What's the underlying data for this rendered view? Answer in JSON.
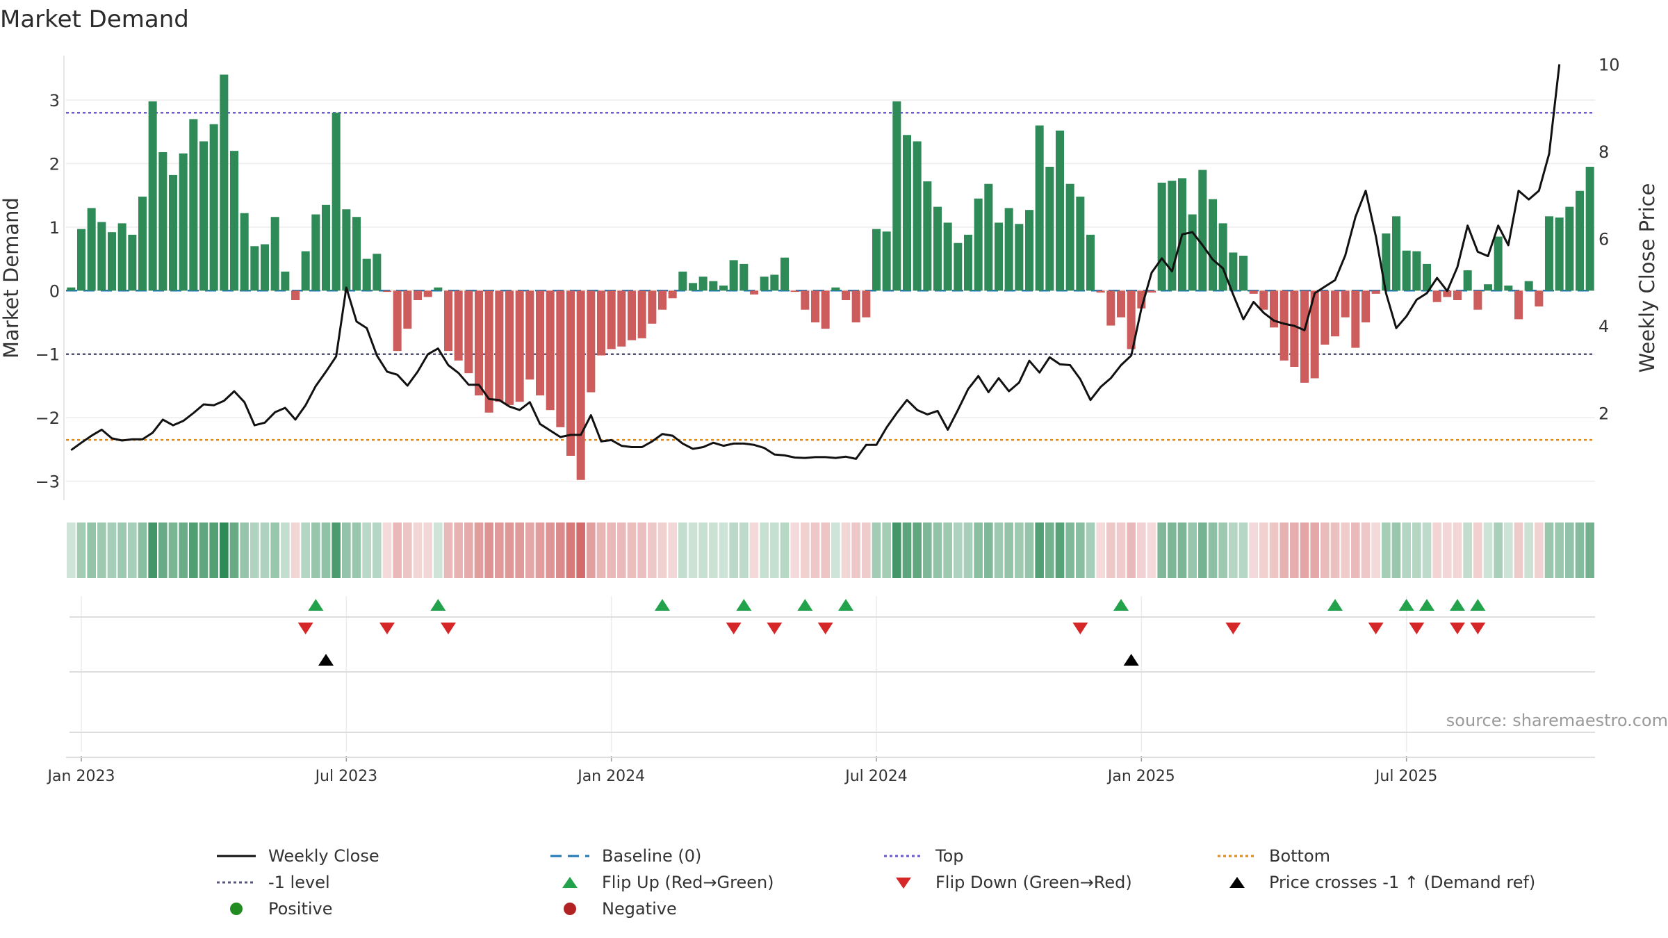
{
  "title": "Market Demand",
  "source": "source: sharemaestro.com",
  "chart_data": {
    "type": "bar",
    "title": "Market Demand",
    "ylabel": "Market Demand",
    "y2label": "Weekly Close Price",
    "ylim": [
      -3.3,
      3.7
    ],
    "y2lim": [
      0,
      10.2
    ],
    "yticks": [
      3,
      2,
      1,
      0,
      -1,
      -2,
      -3
    ],
    "yticklabels": [
      "3",
      "2",
      "1",
      "0",
      "−1",
      "−2",
      "−3"
    ],
    "y2ticks": [
      10,
      8,
      6,
      4,
      2
    ],
    "y2ticklabels": [
      "10",
      "8",
      "6",
      "4",
      "2"
    ],
    "xticks": [
      {
        "label": "Jan 2023",
        "week": 1
      },
      {
        "label": "Jul 2023",
        "week": 27
      },
      {
        "label": "Jan 2024",
        "week": 53
      },
      {
        "label": "Jul 2024",
        "week": 79
      },
      {
        "label": "Jan 2025",
        "week": 105
      },
      {
        "label": "Jul 2025",
        "week": 131
      }
    ],
    "reference_lines": {
      "top": 2.8,
      "minus1": -1.0,
      "bottom": -2.35,
      "baseline": 0
    },
    "colors": {
      "positive": "#2e8b57",
      "negative": "#cd5c5c",
      "price": "#111111",
      "baseline": "#1f77b4",
      "top": "#6a5acd",
      "minus1": "#555577",
      "bottom": "#e08a1e",
      "flip_up": "#22a24a",
      "flip_down": "#d62728",
      "cross": "#000000"
    },
    "demand": [
      0.05,
      0.97,
      1.3,
      1.08,
      0.92,
      1.06,
      0.88,
      1.48,
      2.98,
      2.18,
      1.82,
      2.16,
      2.7,
      2.35,
      2.62,
      3.4,
      2.2,
      1.22,
      0.7,
      0.73,
      1.16,
      0.3,
      -0.15,
      0.62,
      1.2,
      1.35,
      2.8,
      1.28,
      1.16,
      0.5,
      0.58,
      -0.02,
      -0.95,
      -0.6,
      -0.15,
      -0.1,
      0.05,
      -0.95,
      -1.1,
      -1.3,
      -1.65,
      -1.92,
      -1.75,
      -1.8,
      -1.75,
      -1.4,
      -1.65,
      -1.88,
      -2.15,
      -2.6,
      -2.98,
      -1.6,
      -1.02,
      -0.92,
      -0.88,
      -0.78,
      -0.75,
      -0.52,
      -0.3,
      -0.12,
      0.3,
      0.12,
      0.22,
      0.15,
      0.08,
      0.48,
      0.42,
      -0.06,
      0.22,
      0.25,
      0.52,
      -0.02,
      -0.3,
      -0.5,
      -0.6,
      0.05,
      -0.15,
      -0.5,
      -0.42,
      0.97,
      0.93,
      2.98,
      2.45,
      2.35,
      1.72,
      1.32,
      1.07,
      0.75,
      0.88,
      1.45,
      1.68,
      1.07,
      1.3,
      1.05,
      1.27,
      2.6,
      1.95,
      2.52,
      1.68,
      1.48,
      0.88,
      -0.03,
      -0.55,
      -0.42,
      -0.92,
      -0.28,
      -0.03,
      1.7,
      1.73,
      1.77,
      1.2,
      1.9,
      1.44,
      1.06,
      0.6,
      0.55,
      -0.05,
      -0.3,
      -0.58,
      -1.1,
      -1.2,
      -1.45,
      -1.38,
      -0.85,
      -0.72,
      -0.42,
      -0.9,
      -0.5,
      -0.05,
      0.9,
      1.17,
      0.63,
      0.62,
      0.42,
      -0.18,
      -0.1,
      -0.15,
      0.32,
      -0.3,
      0.1,
      0.85,
      0.08,
      -0.45,
      0.15,
      -0.25,
      1.17,
      1.15,
      1.32,
      1.57,
      1.95
    ],
    "price": [
      1.15,
      1.32,
      1.48,
      1.62,
      1.42,
      1.37,
      1.4,
      1.4,
      1.55,
      1.85,
      1.72,
      1.82,
      2.0,
      2.2,
      2.18,
      2.28,
      2.5,
      2.25,
      1.72,
      1.78,
      2.02,
      2.12,
      1.85,
      2.18,
      2.62,
      2.95,
      3.3,
      4.88,
      4.1,
      3.95,
      3.32,
      2.95,
      2.88,
      2.63,
      2.95,
      3.35,
      3.48,
      3.1,
      2.92,
      2.65,
      2.65,
      2.32,
      2.3,
      2.15,
      2.07,
      2.25,
      1.75,
      1.6,
      1.45,
      1.5,
      1.5,
      1.95,
      1.35,
      1.38,
      1.25,
      1.22,
      1.22,
      1.35,
      1.52,
      1.48,
      1.3,
      1.18,
      1.22,
      1.32,
      1.25,
      1.3,
      1.3,
      1.27,
      1.2,
      1.05,
      1.03,
      0.98,
      0.97,
      0.99,
      0.99,
      0.97,
      1.0,
      0.95,
      1.27,
      1.27,
      1.67,
      2.0,
      2.3,
      2.07,
      1.97,
      2.05,
      1.62,
      2.07,
      2.55,
      2.85,
      2.48,
      2.8,
      2.5,
      2.7,
      3.2,
      2.93,
      3.28,
      3.12,
      3.1,
      2.78,
      2.3,
      2.6,
      2.8,
      3.1,
      3.32,
      4.4,
      5.22,
      5.55,
      5.25,
      6.1,
      6.15,
      5.85,
      5.52,
      5.32,
      4.72,
      4.15,
      4.55,
      4.3,
      4.12,
      4.05,
      4.0,
      3.9,
      4.75,
      4.9,
      5.05,
      5.62,
      6.5,
      7.1,
      6.05,
      4.75,
      3.95,
      4.22,
      4.6,
      4.75,
      5.1,
      4.8,
      5.35,
      6.3,
      5.7,
      5.6,
      6.3,
      5.85,
      7.1,
      6.9,
      7.1,
      7.95,
      10.0
    ],
    "flip_up": [
      24,
      36,
      58,
      66,
      72,
      76,
      103,
      124,
      131,
      133,
      136,
      138
    ],
    "flip_down": [
      23,
      31,
      37,
      65,
      69,
      74,
      99,
      114,
      128,
      132,
      136,
      138
    ],
    "price_cross": [
      25,
      104
    ]
  },
  "legend": [
    {
      "label": "Weekly Close",
      "symbol": "solid-line",
      "color": "#111111"
    },
    {
      "label": "Baseline (0)",
      "symbol": "dashed-line",
      "color": "#1f77b4"
    },
    {
      "label": "Top",
      "symbol": "dotted-line",
      "color": "#6a5acd"
    },
    {
      "label": "Bottom",
      "symbol": "dotted-line",
      "color": "#e08a1e"
    },
    {
      "label": "-1 level",
      "symbol": "dotted-line",
      "color": "#555577"
    },
    {
      "label": "Flip Up (Red→Green)",
      "symbol": "triangle-up",
      "color": "#22a24a"
    },
    {
      "label": "Flip Down (Green→Red)",
      "symbol": "triangle-down",
      "color": "#d62728"
    },
    {
      "label": "Price crosses -1 ↑ (Demand ref)",
      "symbol": "triangle-up",
      "color": "#000000"
    },
    {
      "label": "Positive",
      "symbol": "circle",
      "color": "#228b22"
    },
    {
      "label": "Negative",
      "symbol": "circle",
      "color": "#b22222"
    }
  ]
}
